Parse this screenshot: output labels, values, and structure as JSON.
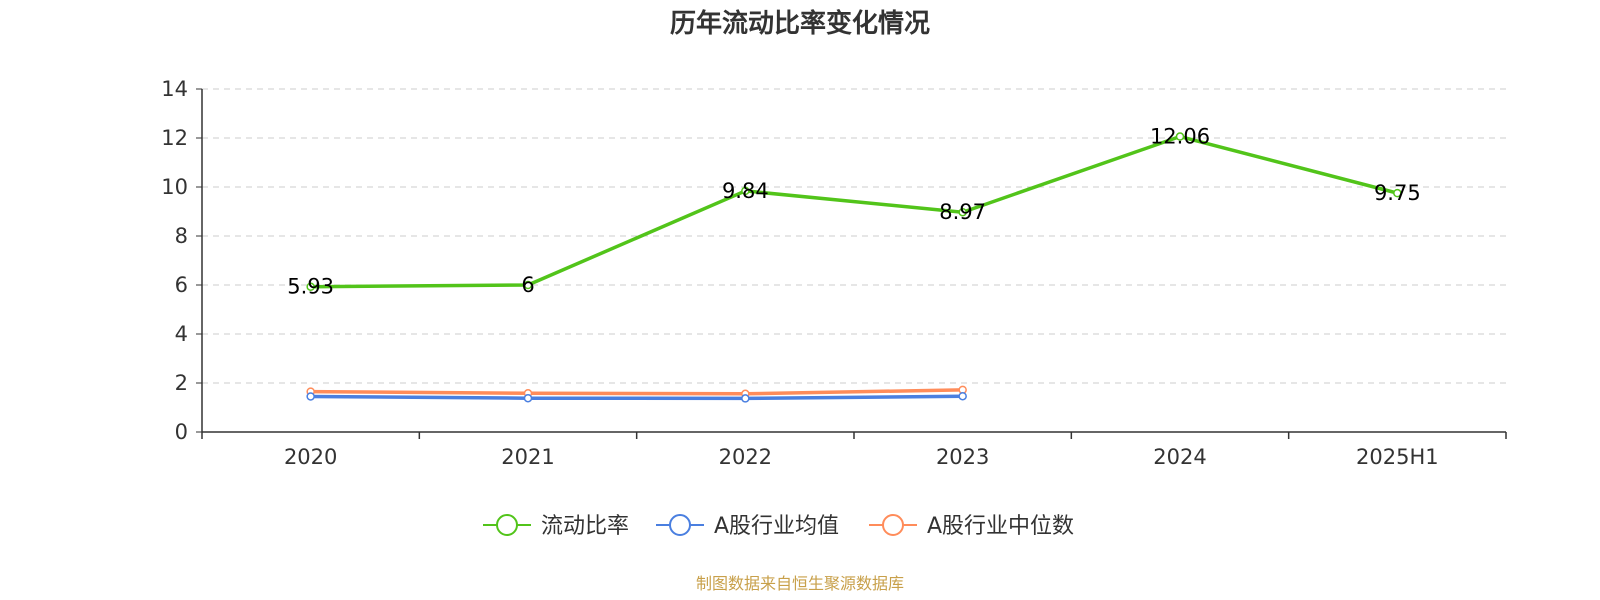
{
  "chart_data": {
    "type": "line",
    "title": "历年流动比率变化情况",
    "xlabel": "",
    "ylabel": "",
    "categories": [
      "2020",
      "2021",
      "2022",
      "2023",
      "2024",
      "2025H1"
    ],
    "ylim": [
      0,
      14
    ],
    "yticks": [
      0,
      2,
      4,
      6,
      8,
      10,
      12,
      14
    ],
    "grid": true,
    "legend_position": "bottom",
    "series": [
      {
        "name": "流动比率",
        "color": "#52c41a",
        "values": [
          5.93,
          6,
          9.84,
          8.97,
          12.06,
          9.75
        ],
        "labels": [
          "5.93",
          "6",
          "9.84",
          "8.97",
          "12.06",
          "9.75"
        ]
      },
      {
        "name": "A股行业均值",
        "color": "#4a7fe0",
        "values": [
          1.45,
          1.38,
          1.37,
          1.46,
          null,
          null
        ],
        "labels": null
      },
      {
        "name": "A股行业中位数",
        "color": "#ff8c5a",
        "values": [
          1.65,
          1.58,
          1.56,
          1.72,
          null,
          null
        ],
        "labels": null
      }
    ]
  },
  "source": "制图数据来自恒生聚源数据库"
}
